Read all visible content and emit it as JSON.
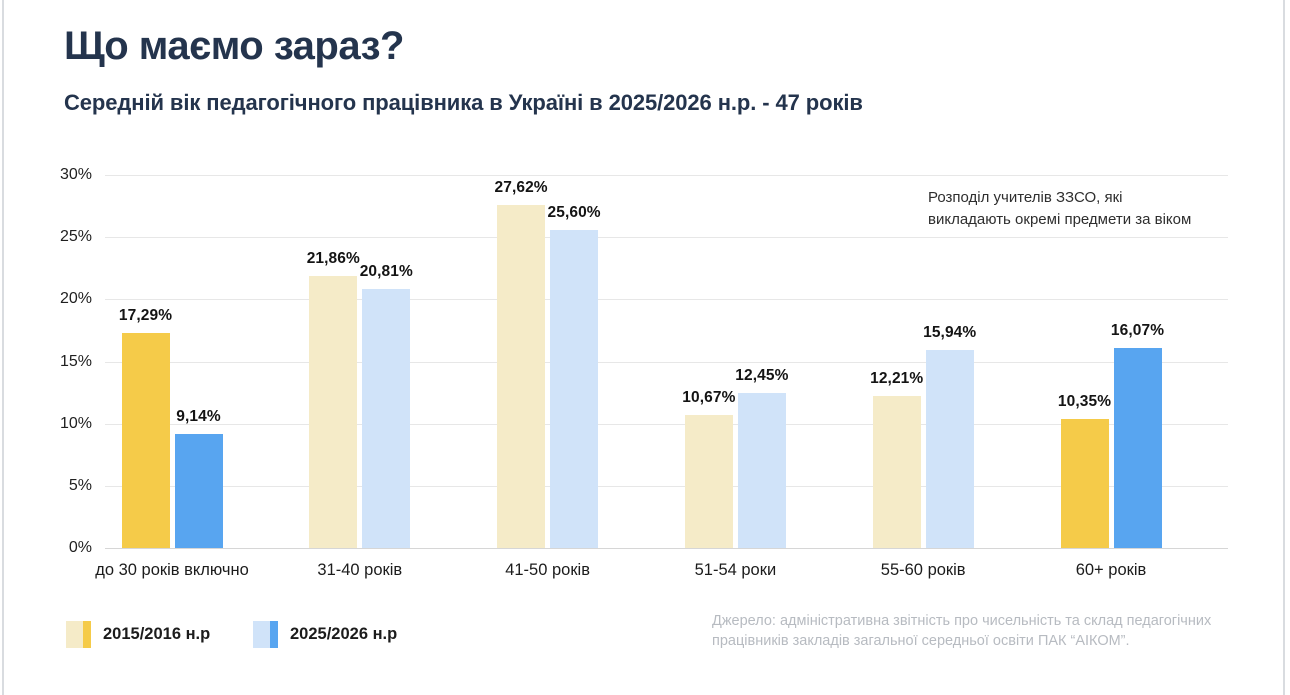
{
  "page": {
    "title": "Що маємо зараз?",
    "subtitle": "Середній вік педагогічного працівника в Україні в 2025/2026 н.р. - 47 років"
  },
  "chart_data": {
    "type": "bar",
    "title": "Що маємо зараз?",
    "subtitle": "Середній вік педагогічного працівника в Україні в 2025/2026 н.р. - 47 років",
    "annotation": "Розподіл учителів ЗЗСО, які викладають окремі предмети за віком",
    "categories": [
      "до 30 років включно",
      "31-40 років",
      "41-50 років",
      "51-54 роки",
      "55-60 років",
      "60+ років"
    ],
    "series": [
      {
        "name": "2015/2016 н.р",
        "values": [
          17.29,
          21.86,
          27.62,
          10.67,
          12.21,
          10.35
        ],
        "labels": [
          "17,29%",
          "21,86%",
          "27,62%",
          "10,67%",
          "12,21%",
          "10,35%"
        ]
      },
      {
        "name": "2025/2026 н.р",
        "values": [
          9.14,
          20.81,
          25.6,
          12.45,
          15.94,
          16.07
        ],
        "labels": [
          "9,14%",
          "20,81%",
          "25,60%",
          "12,45%",
          "15,94%",
          "16,07%"
        ]
      }
    ],
    "ylim": [
      0,
      30
    ],
    "yticks": [
      "0%",
      "5%",
      "10%",
      "15%",
      "20%",
      "25%",
      "30%"
    ],
    "grid": true,
    "legend_position": "bottom-left",
    "highlight_groups": [
      0,
      5
    ],
    "colors": {
      "series1_highlight": "#F5CB49",
      "series1_muted": "#F5EBC8",
      "series2_highlight": "#58A5F0",
      "series2_muted": "#D0E3F9"
    }
  },
  "legend": {
    "items": [
      {
        "label": "2015/2016 н.р"
      },
      {
        "label": "2025/2026 н.р"
      }
    ]
  },
  "source": "Джерело: адміністративна звітність про чисельність та склад педагогічних працівників закладів загальної середньої освіти ПАК “АІКОМ”."
}
